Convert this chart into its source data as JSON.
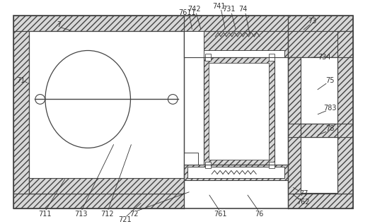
{
  "fig_width": 5.23,
  "fig_height": 3.17,
  "dpi": 100,
  "bg_color": "#ffffff",
  "line_color": "#444444",
  "label_color": "#333333",
  "label_fontsize": 7.0
}
